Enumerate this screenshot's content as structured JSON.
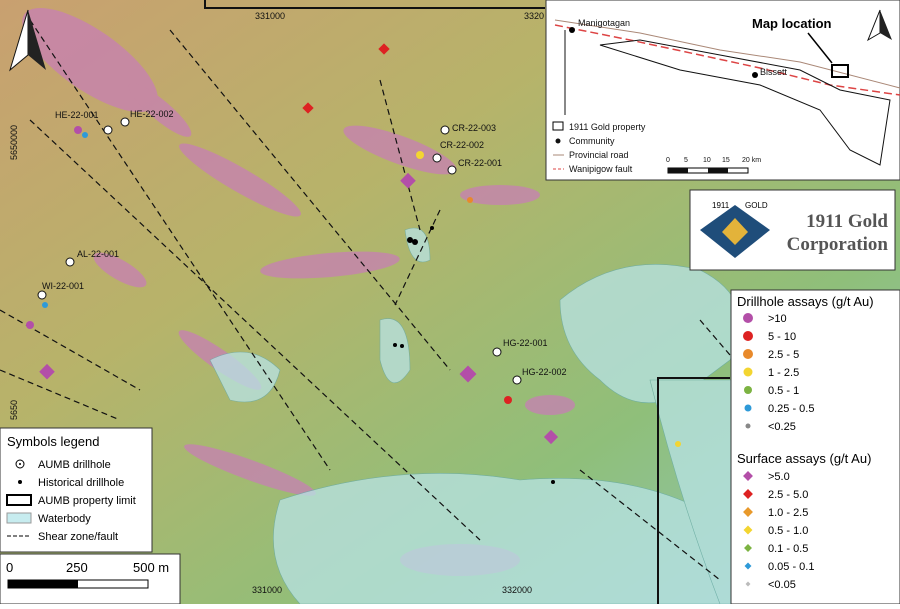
{
  "map": {
    "grid_labels": {
      "top": [
        "331000",
        "3320"
      ],
      "left": [
        "5650000",
        "5650"
      ],
      "bottom": [
        "331000",
        "332000"
      ]
    },
    "drillholes": [
      "HE-22-001",
      "HE-22-002",
      "CR-22-003",
      "CR-22-002",
      "CR-22-001",
      "AL-22-001",
      "WI-22-001",
      "HG-22-001",
      "HG-22-002"
    ],
    "inset": {
      "places": [
        "Manigotagan",
        "Bissett"
      ],
      "callout": "Map location",
      "legend": [
        "1911 Gold property",
        "Community",
        "Provincial road",
        "Wanipigow fault"
      ],
      "scale": [
        "0",
        "5",
        "10",
        "15",
        "20 km"
      ]
    },
    "logo": {
      "mark_top": "1911",
      "mark_side": "GOLD",
      "name_line1": "1911 Gold",
      "name_line2": "Corporation"
    },
    "drillhole_assays": {
      "title": "Drillhole assays (g/t Au)",
      "items": [
        ">10",
        "5 - 10",
        "2.5 - 5",
        "1 - 2.5",
        "0.5 - 1",
        "0.25 - 0.5",
        "<0.25"
      ]
    },
    "surface_assays": {
      "title": "Surface assays (g/t Au)",
      "items": [
        ">5.0",
        "2.5 - 5.0",
        "1.0 - 2.5",
        "0.5 - 1.0",
        "0.1 - 0.5",
        "0.05 - 0.1",
        "<0.05"
      ]
    },
    "symbols_legend": {
      "title": "Symbols legend",
      "items": [
        "AUMB drillhole",
        "Historical drillhole",
        "AUMB property limit",
        "Waterbody",
        "Shear zone/fault"
      ]
    },
    "scale_bar": [
      "0",
      "250",
      "500 m"
    ]
  }
}
